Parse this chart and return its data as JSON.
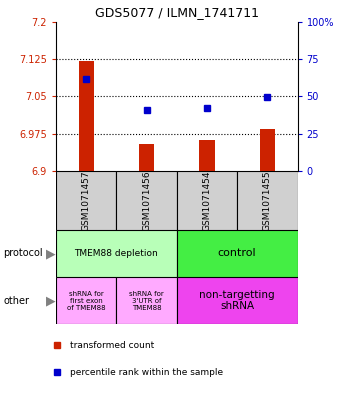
{
  "title": "GDS5077 / ILMN_1741711",
  "samples": [
    "GSM1071457",
    "GSM1071456",
    "GSM1071454",
    "GSM1071455"
  ],
  "red_values": [
    7.12,
    6.955,
    6.962,
    6.985
  ],
  "blue_values": [
    7.085,
    7.022,
    7.027,
    7.048
  ],
  "ylim": [
    6.9,
    7.2
  ],
  "yticks": [
    6.9,
    6.975,
    7.05,
    7.125,
    7.2
  ],
  "ytick_labels": [
    "6.9",
    "6.975",
    "7.05",
    "7.125",
    "7.2"
  ],
  "right_yticks": [
    0,
    25,
    50,
    75,
    100
  ],
  "right_ytick_labels": [
    "0",
    "25",
    "50",
    "75",
    "100%"
  ],
  "protocol_depletion_color": "#b8ffb8",
  "protocol_control_color": "#44ee44",
  "other_pink_color": "#ffaaff",
  "other_magenta_color": "#ee44ee",
  "sample_bg_color": "#d0d0d0",
  "red_color": "#cc2200",
  "blue_color": "#0000cc",
  "bar_width": 0.25,
  "xlim": [
    -0.5,
    3.5
  ]
}
